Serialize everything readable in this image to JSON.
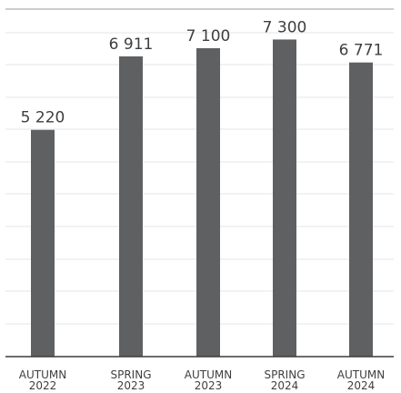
{
  "chart_data": {
    "type": "bar",
    "categories": [
      [
        "AUTUMN",
        "2022"
      ],
      [
        "SPRING",
        "2023"
      ],
      [
        "AUTUMN",
        "2023"
      ],
      [
        "SPRING",
        "2024"
      ],
      [
        "AUTUMN",
        "2024"
      ]
    ],
    "values": [
      5220,
      6911,
      7100,
      7300,
      6771
    ],
    "value_labels": [
      "5 220",
      "6 911",
      "7 100",
      "7 300",
      "6 771"
    ],
    "ylim": [
      0,
      8000
    ],
    "grid": true,
    "colors": {
      "bar": "#5f6062",
      "grid": "#e6e6e6",
      "axis": "#3b3b3b",
      "text": "#3f3f3f"
    }
  }
}
